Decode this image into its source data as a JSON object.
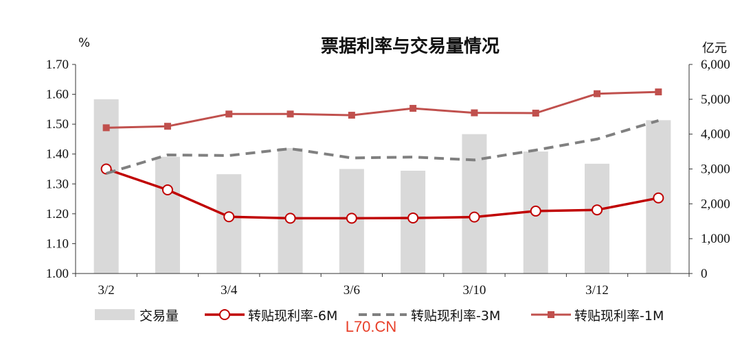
{
  "chart_data": {
    "type": "bar+line",
    "title": "票据利率与交易量情况",
    "left_unit": "%",
    "right_unit": "亿元",
    "ylim_left": [
      1.0,
      1.7
    ],
    "ylim_right": [
      0,
      6000
    ],
    "left_ticks": [
      "1.00",
      "1.10",
      "1.20",
      "1.30",
      "1.40",
      "1.50",
      "1.60",
      "1.70"
    ],
    "right_ticks": [
      "0",
      "1,000",
      "2,000",
      "3,000",
      "4,000",
      "5,000",
      "6,000"
    ],
    "categories": [
      "3/2",
      "",
      "3/4",
      "",
      "3/6",
      "",
      "3/10",
      "",
      "3/12",
      ""
    ],
    "x_tick_labels": [
      "3/2",
      "3/4",
      "3/6",
      "3/10",
      "3/12"
    ],
    "bars": {
      "name": "交易量",
      "color": "#d9d9d9",
      "values": [
        5000,
        3350,
        2850,
        3600,
        3000,
        2950,
        4000,
        3500,
        3150,
        4400
      ]
    },
    "series": [
      {
        "name": "转贴现利率-6M",
        "color": "#c00000",
        "style": "solid-circle",
        "values": [
          1.35,
          1.28,
          1.19,
          1.185,
          1.185,
          1.186,
          1.189,
          1.209,
          1.213,
          1.253
        ]
      },
      {
        "name": "转贴现利率-3M",
        "color": "#808080",
        "style": "dashed",
        "values": [
          1.335,
          1.397,
          1.395,
          1.418,
          1.387,
          1.39,
          1.38,
          1.413,
          1.45,
          1.512
        ]
      },
      {
        "name": "转贴现利率-1M",
        "color": "#c0504d",
        "style": "solid-square",
        "values": [
          1.488,
          1.493,
          1.534,
          1.534,
          1.53,
          1.553,
          1.538,
          1.537,
          1.602,
          1.608
        ]
      }
    ],
    "legend": [
      "交易量",
      "转贴现利率-6M",
      "转贴现利率-3M",
      "转贴现利率-1M"
    ],
    "legend_position": "bottom"
  },
  "watermark": "L70.CN"
}
